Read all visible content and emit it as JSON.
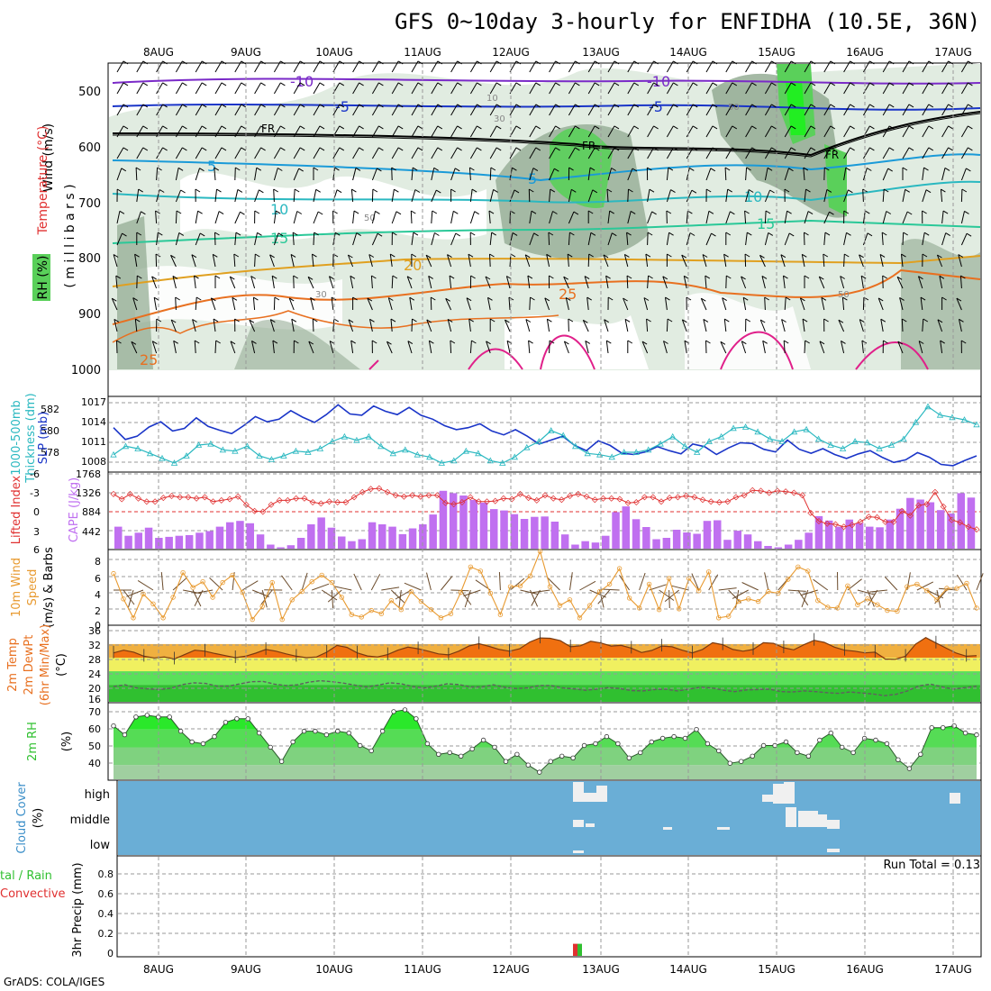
{
  "title": "GFS 0~10day 3-hourly for ENFIDHA (10.5E, 36N)",
  "credit": "GrADS: COLA/IGES",
  "date_labels": [
    "8AUG",
    "9AUG",
    "10AUG",
    "11AUG",
    "12AUG",
    "13AUG",
    "14AUG",
    "15AUG",
    "16AUG",
    "17AUG"
  ],
  "colors": {
    "rh_fill": "#c8dcc8",
    "rh_dark": "#8fa88f",
    "rh_green": "#5ad05a",
    "slp": "#1a35c8",
    "thickness": "#2ab8c0",
    "lifted_index": "#e03030",
    "cape": "#c070f0",
    "wind_speed": "#e89a30",
    "wind_barb": "#6a4a2a",
    "temp_fill": "#f07010",
    "dewpt": "#606060",
    "rh2m_fill": "#30e030",
    "cloud_bg": "#6aaed6",
    "cloud_box": "#f0f0f0",
    "precip_rain": "#30c030",
    "precip_conv": "#e03030"
  },
  "panels": {
    "upper_air": {
      "label_rh": "RH (%)",
      "label_wind": "Wind (m/s)",
      "label_temp": "Temperature (°C)",
      "label_mb": "( m i l l i b a r s )",
      "y_ticks": [
        "500",
        "600",
        "700",
        "800",
        "900",
        "1000"
      ]
    },
    "slp": {
      "label_left": "1000-500mb\nThickness (dm)",
      "label_right": "SLP (mb)",
      "left_ticks": [
        "582",
        "580",
        "578"
      ],
      "right_ticks": [
        "1017",
        "1014",
        "1011",
        "1008"
      ]
    },
    "cape": {
      "label_li": "Lifted Index",
      "label_cape": "CAPE (J/kg)",
      "li_ticks": [
        "-6",
        "-3",
        "0",
        "3",
        "6"
      ],
      "cape_ticks": [
        "1768",
        "1326",
        "884",
        "442"
      ]
    },
    "wind10m": {
      "label": "10m Wind",
      "label2": "Speed",
      "label3": "(m/s) & Barbs",
      "y_ticks": [
        "8",
        "6",
        "4",
        "2",
        "0"
      ]
    },
    "temp2m": {
      "label": "2m Temp",
      "label2": "2m DewPt",
      "label3": "(6hr Min/Max)",
      "unit": "(°C)",
      "y_ticks": [
        "36",
        "32",
        "28",
        "24",
        "20",
        "16"
      ]
    },
    "rh2m": {
      "label": "2m RH",
      "unit": "(%)",
      "y_ticks": [
        "70",
        "60",
        "50",
        "40"
      ]
    },
    "cloud": {
      "label": "Cloud Cover",
      "unit": "(%)",
      "levels": [
        "high",
        "middle",
        "low"
      ]
    },
    "precip": {
      "label_total": "tal / Rain",
      "label_conv": "Convective",
      "label_axis": "3hr Precip (mm)",
      "y_ticks": [
        "0.8",
        "0.6",
        "0.4",
        "0.2",
        "0"
      ],
      "run_total": "Run Total = 0.13"
    }
  },
  "chart_data": [
    {
      "type": "line",
      "panel": "sea level pressure and thickness",
      "series": [
        {
          "name": "SLP (mb)",
          "values": [
            1013.5,
            1011.7,
            1012.2,
            1013.6,
            1014.4,
            1013.0,
            1013.4,
            1015.0,
            1013.7,
            1013.1,
            1012.6,
            1013.8,
            1015.2,
            1014.4,
            1014.8,
            1016.1,
            1015.1,
            1014.3,
            1015.5,
            1017.0,
            1015.6,
            1015.4,
            1016.8,
            1016.0,
            1015.5,
            1016.6,
            1015.4,
            1014.8,
            1013.8,
            1013.2,
            1013.5,
            1014.1,
            1013.0,
            1012.4,
            1013.2,
            1012.2,
            1011.0,
            1011.6,
            1012.2,
            1010.8,
            1010.0,
            1011.5,
            1010.8,
            1009.6,
            1009.4,
            1009.8,
            1010.6,
            1010.0,
            1009.5,
            1011.0,
            1010.6,
            1009.4,
            1010.4,
            1011.2,
            1011.1,
            1010.2,
            1009.8,
            1011.6,
            1010.2,
            1009.6,
            1010.3,
            1009.4,
            1008.8,
            1009.5,
            1010.0,
            1009.0,
            1008.2,
            1008.6,
            1009.7,
            1009.0,
            1007.9,
            1007.7,
            1008.5,
            1009.2
          ]
        },
        {
          "name": "Thickness (dm)",
          "values": [
            578.3,
            579.0,
            578.8,
            578.4,
            578.0,
            577.6,
            578.2,
            579.1,
            579.2,
            578.7,
            578.6,
            579.0,
            578.2,
            577.9,
            578.2,
            578.6,
            578.5,
            578.8,
            579.4,
            579.8,
            579.5,
            579.8,
            579.0,
            578.4,
            578.7,
            578.3,
            578.1,
            577.6,
            577.8,
            578.6,
            578.4,
            577.8,
            577.6,
            578.1,
            578.9,
            579.4,
            580.3,
            579.9,
            579.0,
            578.4,
            578.3,
            578.1,
            578.5,
            578.5,
            578.7,
            579.2,
            579.8,
            579.0,
            578.5,
            579.4,
            579.8,
            580.5,
            580.6,
            580.2,
            579.6,
            579.4,
            580.2,
            580.4,
            579.6,
            579.1,
            578.8,
            579.4,
            579.3,
            578.8,
            579.1,
            579.6,
            581.0,
            582.3,
            581.6,
            581.4,
            581.2,
            580.8
          ]
        }
      ],
      "ylim_slp": [
        1007,
        1018
      ],
      "ylim_thickness": [
        577,
        583
      ]
    },
    {
      "type": "bar",
      "panel": "CAPE and lifted index",
      "series": [
        {
          "name": "CAPE (J/kg)",
          "values": [
            650,
            380,
            470,
            620,
            320,
            350,
            380,
            400,
            470,
            520,
            650,
            780,
            820,
            750,
            420,
            120,
            40,
            100,
            320,
            720,
            920,
            620,
            360,
            220,
            280,
            780,
            720,
            650,
            430,
            600,
            720,
            1010,
            1710,
            1640,
            1570,
            1440,
            1360,
            1170,
            1130,
            1020,
            880,
            940,
            950,
            800,
            420,
            120,
            220,
            180,
            380,
            1080,
            1250,
            870,
            640,
            280,
            320,
            560,
            480,
            440,
            820,
            840,
            260,
            530,
            420,
            220,
            80,
            40,
            120,
            260,
            470,
            960,
            830,
            650,
            860,
            760,
            650,
            630,
            860,
            1180,
            1500,
            1450,
            1370,
            1140,
            1040,
            1640,
            1510
          ]
        },
        {
          "name": "Lifted Index",
          "values": [
            -2.8,
            -2.0,
            -2.8,
            -2.1,
            -1.6,
            -1.6,
            -2.2,
            -2.5,
            -2.3,
            -2.3,
            -2.1,
            -2.3,
            -1.6,
            -1.8,
            -2.0,
            -2.4,
            -1.1,
            -0.1,
            0.0,
            -1.1,
            -1.8,
            -1.8,
            -2.1,
            -2.1,
            -1.5,
            -1.3,
            -1.6,
            -1.5,
            -1.5,
            -2.3,
            -3.1,
            -3.6,
            -3.7,
            -3.1,
            -2.6,
            -2.4,
            -2.6,
            -2.4,
            -2.6,
            -2.6,
            -1.4,
            -1.2,
            -1.5,
            -2.3,
            -1.6,
            -1.6,
            -1.7,
            -2.1,
            -2.0,
            -2.8,
            -2.2,
            -1.8,
            -2.6,
            -2.1,
            -1.9,
            -2.5,
            -2.8,
            -2.4,
            -1.9,
            -2.1,
            -2.1,
            -2.0,
            -1.4,
            -1.5,
            -2.3,
            -2.3,
            -1.6,
            -2.2,
            -2.3,
            -2.5,
            -2.3,
            -1.9,
            -1.6,
            -1.5,
            -1.6,
            -2.3,
            -2.6,
            -3.4,
            -3.3,
            -3.0,
            -3.3,
            -3.2,
            -3.0,
            -2.6,
            0.2,
            1.5,
            1.9,
            2.0,
            2.4,
            2.1,
            1.6,
            0.8,
            0.9,
            1.6,
            1.6,
            -0.1,
            0.6,
            -1.0,
            -1.2,
            -3.1,
            -0.8,
            1.3,
            1.7,
            2.4,
            2.8
          ]
        }
      ],
      "ylim_cape": [
        0,
        2210
      ],
      "ylim_li": [
        -6,
        6
      ]
    },
    {
      "type": "line",
      "panel": "10m wind speed",
      "series": [
        {
          "name": "10m Wind Speed (m/s)",
          "values": [
            6.3,
            3.2,
            0.9,
            3.8,
            2.6,
            0.9,
            3.4,
            6.4,
            4.6,
            5.3,
            3.4,
            5.2,
            6.1,
            4.0,
            0.7,
            2.3,
            5.2,
            0.7,
            3.1,
            4.1,
            5.3,
            6.1,
            5.2,
            3.4,
            1.3,
            1.0,
            1.8,
            1.4,
            3.0,
            1.9,
            4.1,
            2.9,
            1.9,
            0.9,
            1.4,
            4.0,
            7.1,
            6.6,
            3.9,
            1.3,
            4.7,
            4.8,
            6.0,
            9.0,
            4.7,
            2.4,
            3.1,
            0.9,
            2.4,
            4.1,
            5.0,
            6.9,
            3.3,
            2.1,
            5.0,
            1.9,
            5.7,
            2.0,
            5.7,
            4.2,
            6.5,
            0.9,
            1.1,
            2.9,
            3.2,
            2.9,
            4.1,
            3.9,
            5.6,
            7.1,
            6.6,
            3.0,
            2.2,
            2.1,
            4.8,
            2.5,
            3.2,
            2.5,
            1.8,
            1.7,
            4.7,
            5.0,
            4.2,
            3.1,
            4.5,
            4.5,
            5.1,
            2.1
          ]
        }
      ],
      "ylim": [
        0,
        9
      ]
    },
    {
      "type": "area",
      "panel": "2m temperature and dew point",
      "series": [
        {
          "name": "2m Temp (°C)",
          "values": [
            29.4,
            30.2,
            29.6,
            28.4,
            27.9,
            28.2,
            27.6,
            28.9,
            30.2,
            29.9,
            29.2,
            28.6,
            28.0,
            28.4,
            29.3,
            30.4,
            29.9,
            29.1,
            28.4,
            28.0,
            28.2,
            29.6,
            31.6,
            31.0,
            29.4,
            28.5,
            28.2,
            28.9,
            30.2,
            31.1,
            30.6,
            29.9,
            29.1,
            28.8,
            29.9,
            31.4,
            32.1,
            31.3,
            30.4,
            29.9,
            30.6,
            32.6,
            33.8,
            33.7,
            33.0,
            31.2,
            31.5,
            32.8,
            32.3,
            31.4,
            31.6,
            30.8,
            29.5,
            30.1,
            31.4,
            31.2,
            30.2,
            29.4,
            30.4,
            32.4,
            31.8,
            30.4,
            29.9,
            30.4,
            32.4,
            32.2,
            30.9,
            30.3,
            31.8,
            33.1,
            32.5,
            31.1,
            30.2,
            29.9,
            29.4,
            29.6,
            27.6,
            27.5,
            28.4,
            32.0,
            33.9,
            32.3,
            30.8,
            29.3,
            28.4,
            28.6
          ]
        },
        {
          "name": "2m DewPt (°C)",
          "values": [
            19.5,
            20.0,
            19.1,
            18.8,
            18.6,
            19.0,
            20.1,
            20.6,
            20.4,
            19.6,
            19.6,
            20.3,
            20.9,
            21.0,
            20.2,
            19.8,
            20.0,
            20.8,
            21.2,
            20.9,
            20.5,
            19.9,
            19.4,
            19.9,
            20.6,
            20.3,
            19.5,
            19.1,
            19.6,
            20.3,
            20.1,
            19.4,
            19.4,
            20.0,
            19.3,
            18.9,
            19.1,
            19.8,
            19.8,
            19.1,
            18.8,
            18.4,
            18.7,
            19.2,
            18.9,
            18.3,
            18.2,
            18.6,
            18.7,
            18.2,
            18.7,
            19.3,
            19.1,
            18.4,
            18.0,
            18.5,
            18.6,
            18.7,
            18.0,
            17.9,
            18.2,
            18.0,
            17.7,
            17.5,
            17.9,
            17.6,
            17.3,
            16.8,
            17.2,
            18.2,
            19.7,
            20.2,
            19.4,
            18.7,
            19.2,
            19.6
          ]
        }
      ],
      "ylim": [
        15,
        37
      ]
    },
    {
      "type": "area",
      "panel": "2m relative humidity",
      "series": [
        {
          "name": "2m RH (%)",
          "values": [
            62,
            57,
            67,
            68,
            67,
            67,
            59,
            53,
            52,
            56,
            64,
            66,
            66,
            58,
            50,
            42,
            53,
            59,
            59,
            57,
            59,
            58,
            51,
            48,
            59,
            70,
            71,
            66,
            52,
            46,
            47,
            45,
            49,
            54,
            50,
            42,
            46,
            40,
            36,
            42,
            45,
            44,
            51,
            52,
            56,
            52,
            44,
            47,
            53,
            55,
            56,
            55,
            60,
            52,
            48,
            41,
            42,
            45,
            51,
            51,
            53,
            47,
            45,
            54,
            58,
            50,
            47,
            55,
            54,
            52,
            43,
            38,
            46,
            61,
            61,
            62,
            58,
            57
          ]
        }
      ],
      "ylim": [
        32,
        74
      ]
    },
    {
      "type": "heatmap",
      "panel": "cloud cover",
      "rows": [
        "high",
        "middle",
        "low"
      ],
      "note": "cloud blocks present near 12-13AUG, 14AUG, 15AUG and 17AUG"
    },
    {
      "type": "bar",
      "panel": "3hr precipitation",
      "series": [
        {
          "name": "Total / Rain (mm)",
          "x": "12AUG 18Z",
          "value": 0.13
        },
        {
          "name": "Convective (mm)",
          "x": "12AUG 18Z",
          "value": 0.13
        }
      ],
      "run_total": 0.13,
      "ylim": [
        0,
        1.0
      ]
    }
  ]
}
